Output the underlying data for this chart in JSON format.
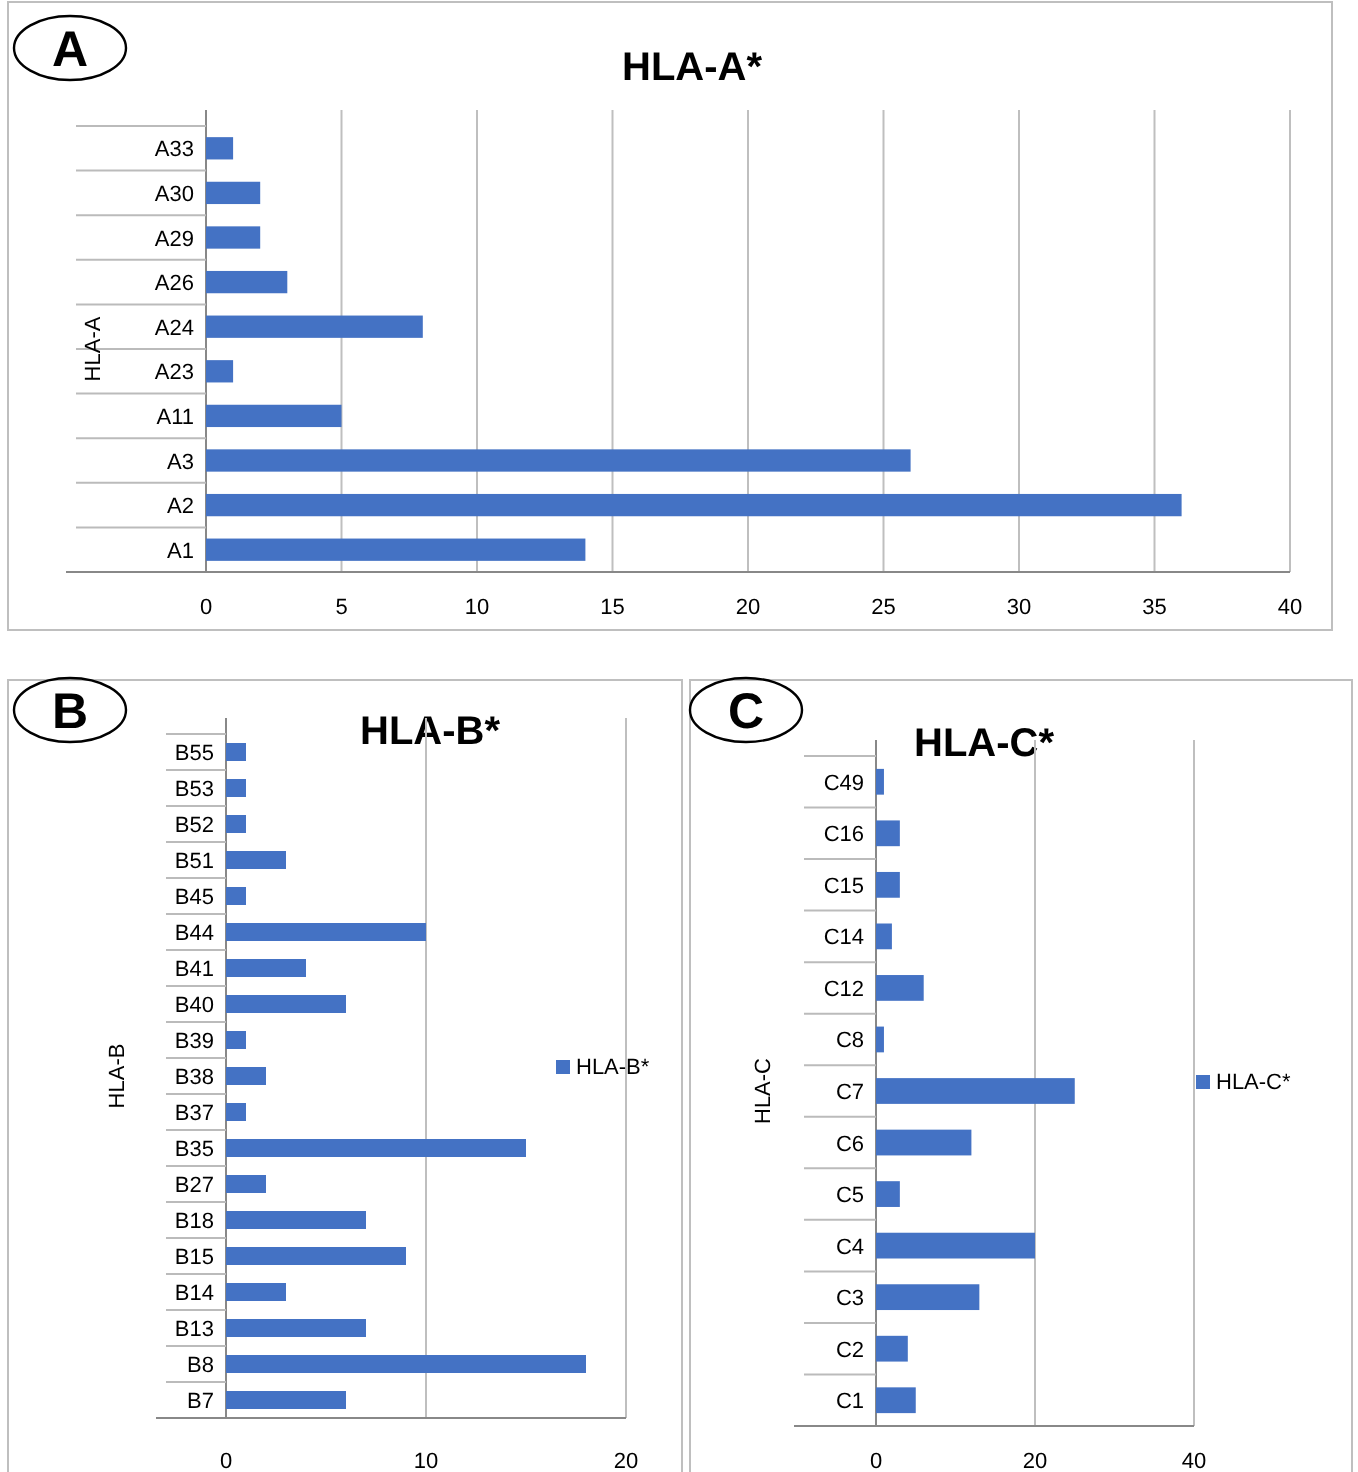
{
  "chart_data": [
    {
      "type": "bar",
      "orientation": "horizontal",
      "title": "HLA-A*",
      "ylabel": "HLA-A",
      "annotations": [
        "A"
      ],
      "categories": [
        "A33",
        "A30",
        "A29",
        "A26",
        "A24",
        "A23",
        "A11",
        "A3",
        "A2",
        "A1"
      ],
      "values": [
        1,
        2,
        2,
        3,
        8,
        1,
        5,
        26,
        36,
        14
      ],
      "color": "#4472c4",
      "xlim": [
        0,
        40
      ],
      "xticks": [
        0,
        5,
        10,
        15,
        20,
        25,
        30,
        35,
        40
      ],
      "grid": "x",
      "legend": false
    },
    {
      "type": "bar",
      "orientation": "horizontal",
      "title": "HLA-B*",
      "ylabel": "HLA-B",
      "annotations": [
        "B"
      ],
      "categories": [
        "B55",
        "B53",
        "B52",
        "B51",
        "B45",
        "B44",
        "B41",
        "B40",
        "B39",
        "B38",
        "B37",
        "B35",
        "B27",
        "B18",
        "B15",
        "B14",
        "B13",
        "B8",
        "B7"
      ],
      "series": [
        {
          "name": "HLA-B*",
          "color": "#4472c4",
          "values": [
            1,
            1,
            1,
            3,
            1,
            10,
            4,
            6,
            1,
            2,
            1,
            15,
            2,
            7,
            9,
            3,
            7,
            18,
            6
          ]
        }
      ],
      "xlim": [
        0,
        20
      ],
      "xticks": [
        0,
        10,
        20
      ],
      "grid": "x",
      "legend": "right"
    },
    {
      "type": "bar",
      "orientation": "horizontal",
      "title": "HLA-C*",
      "ylabel": "HLA-C",
      "annotations": [
        "C"
      ],
      "categories": [
        "C49",
        "C16",
        "C15",
        "C14",
        "C12",
        "C8",
        "C7",
        "C6",
        "C5",
        "C4",
        "C3",
        "C2",
        "C1"
      ],
      "series": [
        {
          "name": "HLA-C*",
          "color": "#4472c4",
          "values": [
            1,
            3,
            3,
            2,
            6,
            1,
            25,
            12,
            3,
            20,
            13,
            4,
            5
          ]
        }
      ],
      "xlim": [
        0,
        40
      ],
      "xticks": [
        0,
        20,
        40
      ],
      "grid": "x",
      "legend": "right"
    }
  ]
}
